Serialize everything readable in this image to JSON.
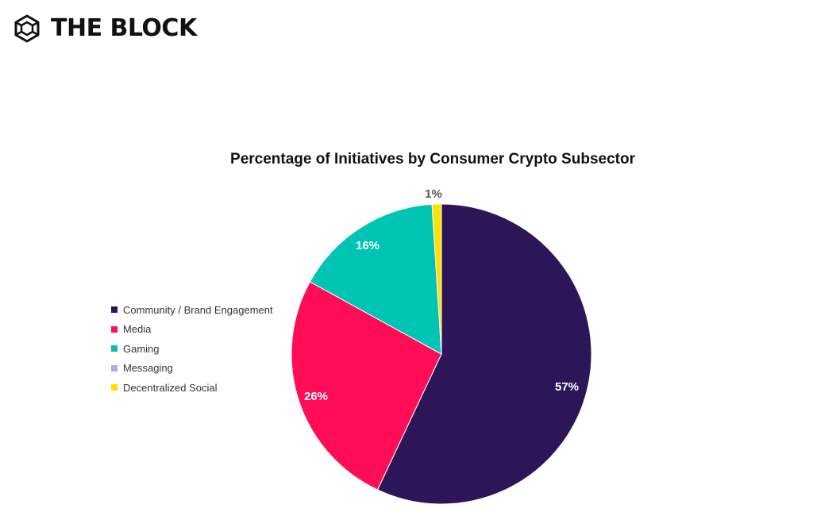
{
  "brand": {
    "name": "THE BLOCK",
    "logo_icon": "cube-hexagon-icon"
  },
  "chart_data": {
    "type": "pie",
    "title": "Percentage of Initiatives by Consumer Crypto Subsector",
    "slices": [
      {
        "name": "Community / Brand Engagement",
        "value": 57,
        "label": "57%",
        "color": "#2d1658",
        "label_color": "#ffffff"
      },
      {
        "name": "Media",
        "value": 26,
        "label": "26%",
        "color": "#ff0e57",
        "label_color": "#ffffff"
      },
      {
        "name": "Gaming",
        "value": 16,
        "label": "16%",
        "color": "#00c4b3",
        "label_color": "#ffffff"
      },
      {
        "name": "Messaging",
        "value": 0,
        "label": "",
        "color": "#b4a7e6",
        "label_color": "#ffffff"
      },
      {
        "name": "Decentralized Social",
        "value": 1,
        "label": "1%",
        "color": "#ffe100",
        "label_color": "#555555"
      }
    ],
    "start": "top",
    "direction": "clockwise",
    "legend_position": "left"
  }
}
